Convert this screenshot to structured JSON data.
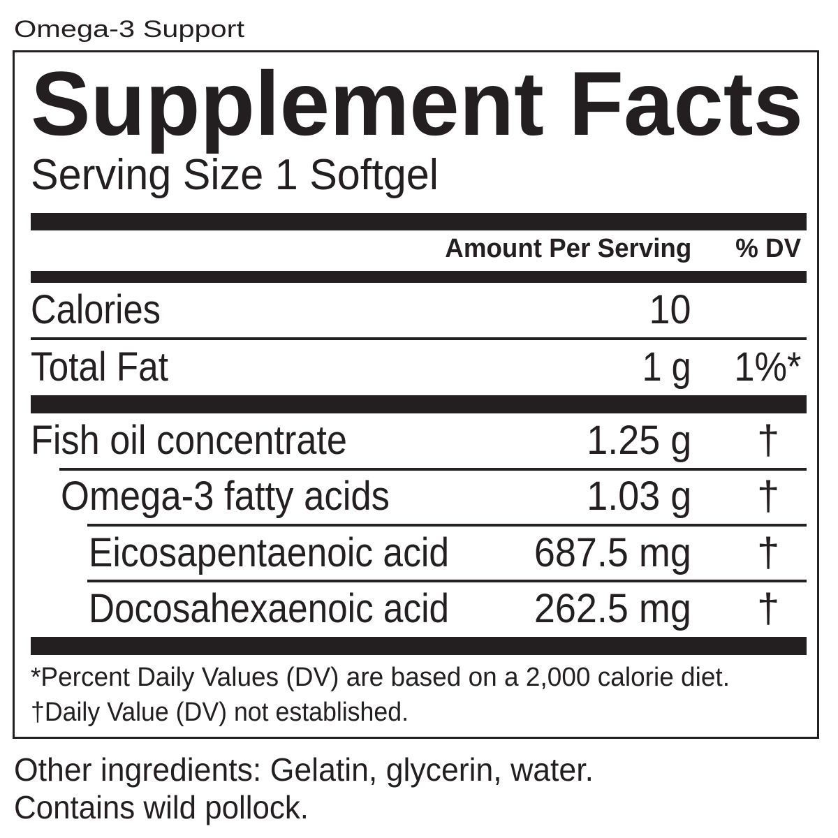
{
  "product_name": "Omega-3 Support",
  "title": "Supplement Facts",
  "serving_size": "Serving Size 1 Softgel",
  "header": {
    "amount": "Amount Per Serving",
    "dv": "% DV"
  },
  "rows": [
    {
      "name": "Calories",
      "amount": "10",
      "dv": ""
    },
    {
      "name": "Total Fat",
      "amount": "1 g",
      "dv": "1%*"
    },
    {
      "name": "Fish oil concentrate",
      "amount": "1.25 g",
      "dv": "†"
    },
    {
      "name": "Omega-3 fatty acids",
      "amount": "1.03 g",
      "dv": "†"
    },
    {
      "name": "Eicosapentaenoic acid",
      "amount": "687.5 mg",
      "dv": "†"
    },
    {
      "name": "Docosahexaenoic acid",
      "amount": "262.5 mg",
      "dv": "†"
    }
  ],
  "footnotes": [
    "*Percent Daily Values (DV) are based on a 2,000 calorie diet.",
    "†Daily Value (DV) not established."
  ],
  "other_ingredients": "Other ingredients: Gelatin, glycerin, water.",
  "allergen": "Contains wild pollock."
}
